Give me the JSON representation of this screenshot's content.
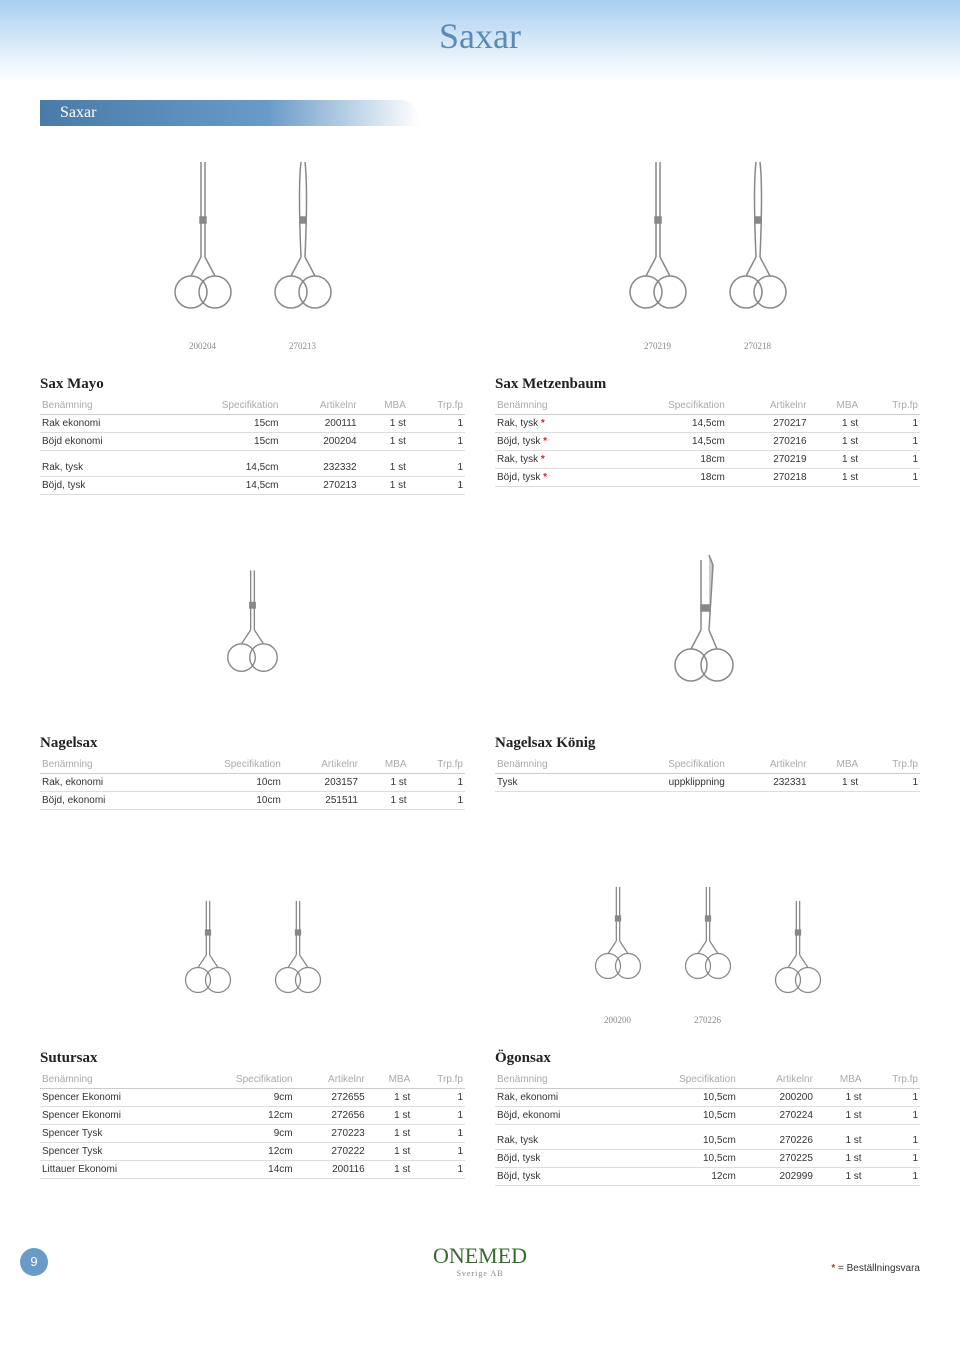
{
  "page_title": "Saxar",
  "section_tab": "Saxar",
  "page_number": "9",
  "brand": {
    "name": "ONEMED",
    "sub": "Sverige AB"
  },
  "legend": {
    "star": "*",
    "text": " = Beställningsvara"
  },
  "headers": {
    "col1": "Benämning",
    "col2": "Specifikation",
    "col3": "Artikelnr",
    "col4": "MBA",
    "col5": "Trp.fp"
  },
  "img_labels": {
    "r1a": "200204",
    "r1b": "270213",
    "r1c": "270219",
    "r1d": "270218",
    "r3a": "200200",
    "r3b": "270226"
  },
  "tables": {
    "sax_mayo": {
      "title": "Sax Mayo",
      "rows1": [
        [
          "Rak ekonomi",
          "15cm",
          "200111",
          "1 st",
          "1"
        ],
        [
          "Böjd ekonomi",
          "15cm",
          "200204",
          "1 st",
          "1"
        ]
      ],
      "rows2": [
        [
          "Rak, tysk",
          "14,5cm",
          "232332",
          "1 st",
          "1"
        ],
        [
          "Böjd, tysk",
          "14,5cm",
          "270213",
          "1 st",
          "1"
        ]
      ]
    },
    "sax_metzenbaum": {
      "title": "Sax Metzenbaum",
      "rows": [
        [
          "Rak, tysk ",
          "*",
          "14,5cm",
          "270217",
          "1 st",
          "1"
        ],
        [
          "Böjd, tysk ",
          "*",
          "14,5cm",
          "270216",
          "1 st",
          "1"
        ],
        [
          "Rak, tysk ",
          "*",
          "18cm",
          "270219",
          "1 st",
          "1"
        ],
        [
          "Böjd, tysk ",
          "*",
          "18cm",
          "270218",
          "1 st",
          "1"
        ]
      ]
    },
    "nagelsax": {
      "title": "Nagelsax",
      "rows": [
        [
          "Rak, ekonomi",
          "10cm",
          "203157",
          "1 st",
          "1"
        ],
        [
          "Böjd, ekonomi",
          "10cm",
          "251511",
          "1 st",
          "1"
        ]
      ]
    },
    "nagelsax_konig": {
      "title": "Nagelsax König",
      "rows": [
        [
          "Tysk",
          "uppklippning",
          "232331",
          "1 st",
          "1"
        ]
      ]
    },
    "sutursax": {
      "title": "Sutursax",
      "rows": [
        [
          "Spencer Ekonomi",
          "9cm",
          "272655",
          "1 st",
          "1"
        ],
        [
          "Spencer Ekonomi",
          "12cm",
          "272656",
          "1 st",
          "1"
        ],
        [
          "Spencer Tysk",
          "9cm",
          "270223",
          "1 st",
          "1"
        ],
        [
          "Spencer Tysk",
          "12cm",
          "270222",
          "1 st",
          "1"
        ],
        [
          "Littauer Ekonomi",
          "14cm",
          "200116",
          "1 st",
          "1"
        ]
      ]
    },
    "ogonsax": {
      "title": "Ögonsax",
      "rows1": [
        [
          "Rak, ekonomi",
          "10,5cm",
          "200200",
          "1 st",
          "1"
        ],
        [
          "Böjd, ekonomi",
          "10,5cm",
          "270224",
          "1 st",
          "1"
        ]
      ],
      "rows2": [
        [
          "Rak, tysk",
          "10,5cm",
          "270226",
          "1 st",
          "1"
        ],
        [
          "Böjd, tysk",
          "10,5cm",
          "270225",
          "1 st",
          "1"
        ],
        [
          "Böjd, tysk",
          "12cm",
          "202999",
          "1 st",
          "1"
        ]
      ]
    }
  }
}
